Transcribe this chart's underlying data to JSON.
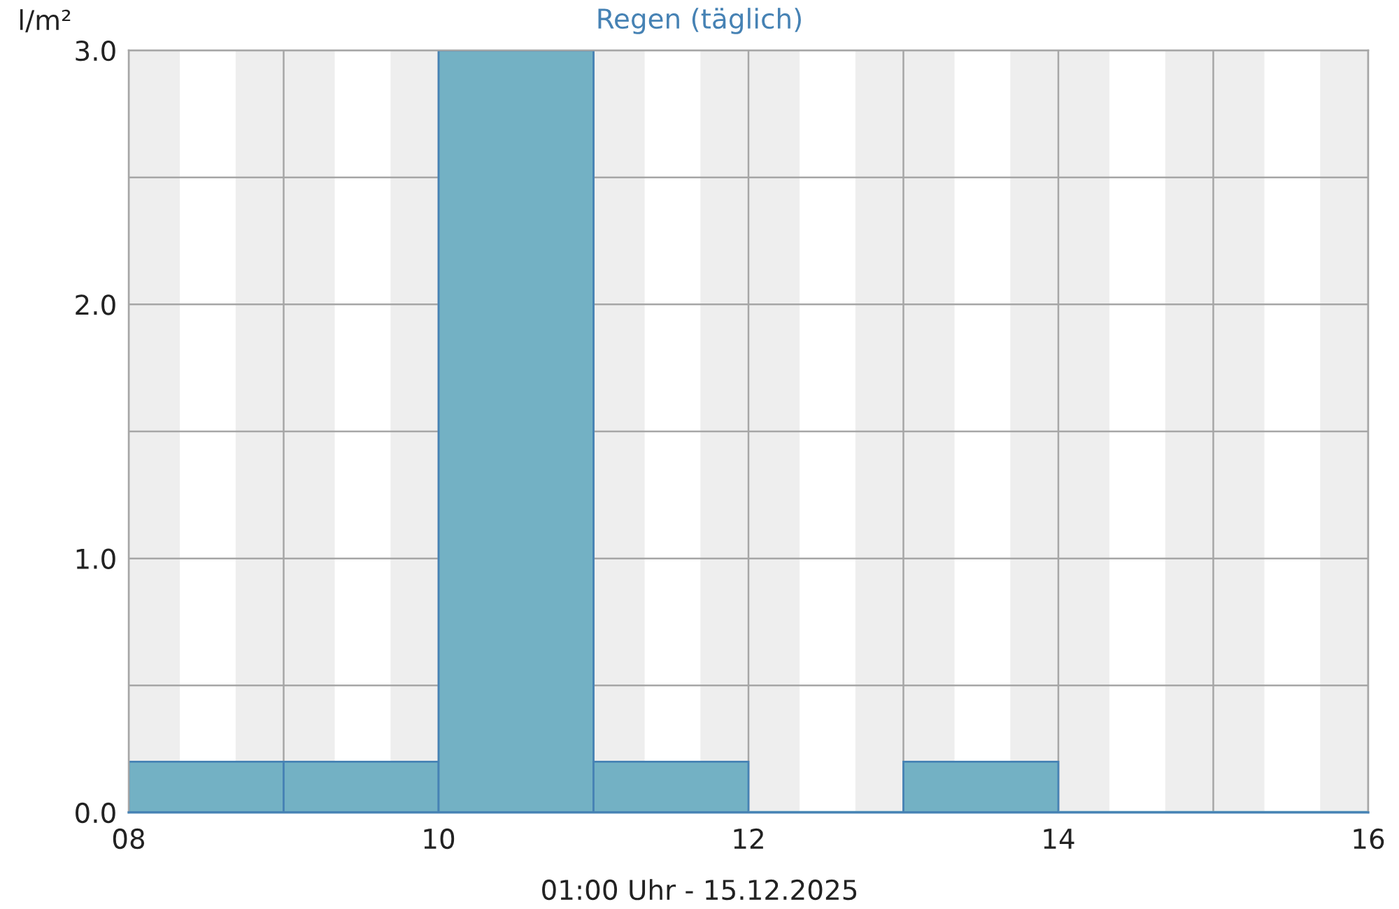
{
  "chart_data": {
    "type": "histogram",
    "title": "Regen (täglich)",
    "xlabel": "01:00 Uhr - 15.12.2025",
    "ylabel": "l/m²",
    "bins": [
      8,
      9,
      10,
      11,
      12,
      13,
      14,
      15,
      16
    ],
    "values": [
      0.2,
      0.2,
      3.0,
      0.2,
      0,
      0.2,
      0,
      0
    ],
    "color": "#73b1c4",
    "xlim": [
      8,
      16
    ],
    "xticks": [
      {
        "value": 8,
        "label": "08"
      },
      {
        "value": 9,
        "label": null
      },
      10,
      {
        "value": 11,
        "label": null
      },
      12,
      {
        "value": 13,
        "label": null
      },
      14,
      {
        "value": 15,
        "label": null
      },
      16
    ],
    "ylim": [
      0,
      3
    ],
    "yticks": [
      {
        "value": 0,
        "label": "0.0"
      },
      {
        "value": 0.5,
        "label": null
      },
      {
        "value": 1,
        "label": "1.0"
      },
      {
        "value": 1.5,
        "label": null
      },
      {
        "value": 2,
        "label": "2.0"
      },
      {
        "value": 2.5,
        "label": null
      },
      {
        "value": 3,
        "label": "3.0"
      }
    ],
    "grid": true,
    "bands": [
      {
        "axis": "x",
        "from": 8,
        "to": 8.33,
        "color": "#eeeeee"
      },
      {
        "axis": "x",
        "from": 8.69,
        "to": 9.33,
        "color": "#eeeeee"
      },
      {
        "axis": "x",
        "from": 9.69,
        "to": 10.33,
        "color": "#eeeeee"
      },
      {
        "axis": "x",
        "from": 10.69,
        "to": 11.33,
        "color": "#eeeeee"
      },
      {
        "axis": "x",
        "from": 11.69,
        "to": 12.33,
        "color": "#eeeeee"
      },
      {
        "axis": "x",
        "from": 12.69,
        "to": 13.33,
        "color": "#eeeeee"
      },
      {
        "axis": "x",
        "from": 13.69,
        "to": 14.33,
        "color": "#eeeeee"
      },
      {
        "axis": "x",
        "from": 14.69,
        "to": 15.33,
        "color": "#eeeeee"
      },
      {
        "axis": "x",
        "from": 15.69,
        "to": 16,
        "color": "#eeeeee"
      }
    ]
  }
}
